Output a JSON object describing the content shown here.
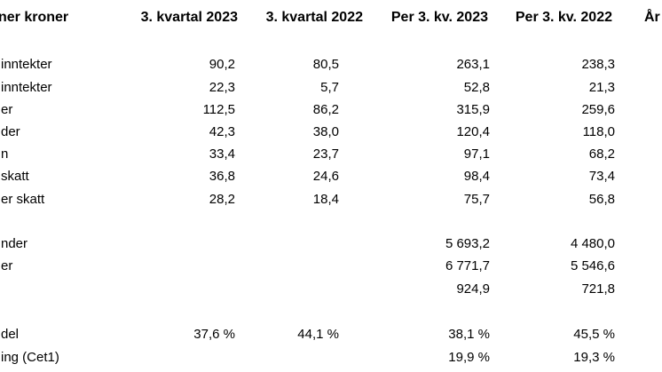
{
  "table": {
    "header": [
      "ner kroner",
      "3. kvartal 2023",
      "3. kvartal 2022",
      "Per 3. kv. 2023",
      "Per 3. kv. 2022",
      "År"
    ],
    "rows": [
      [
        "inntekter",
        "90,2",
        "80,5",
        "263,1",
        "238,3"
      ],
      [
        "inntekter",
        "22,3",
        "5,7",
        "52,8",
        "21,3"
      ],
      [
        "er",
        "112,5",
        "86,2",
        "315,9",
        "259,6"
      ],
      [
        "der",
        "42,3",
        "38,0",
        "120,4",
        "118,0"
      ],
      [
        "n",
        "33,4",
        "23,7",
        "97,1",
        "68,2"
      ],
      [
        "skatt",
        "36,8",
        "24,6",
        "98,4",
        "73,4"
      ],
      [
        "er skatt",
        "28,2",
        "18,4",
        "75,7",
        "56,8"
      ],
      [
        "nder",
        null,
        null,
        "5 693,2",
        "4 480,0"
      ],
      [
        "er",
        null,
        null,
        "6 771,7",
        "5 546,6"
      ],
      [
        null,
        null,
        null,
        "924,9",
        "721,8"
      ],
      [
        "del",
        "37,6 %",
        "44,1 %",
        "38,1 %",
        "45,5 %"
      ],
      [
        "ing (Cet1)",
        null,
        null,
        "19,9 %",
        "19,3 %"
      ]
    ]
  }
}
